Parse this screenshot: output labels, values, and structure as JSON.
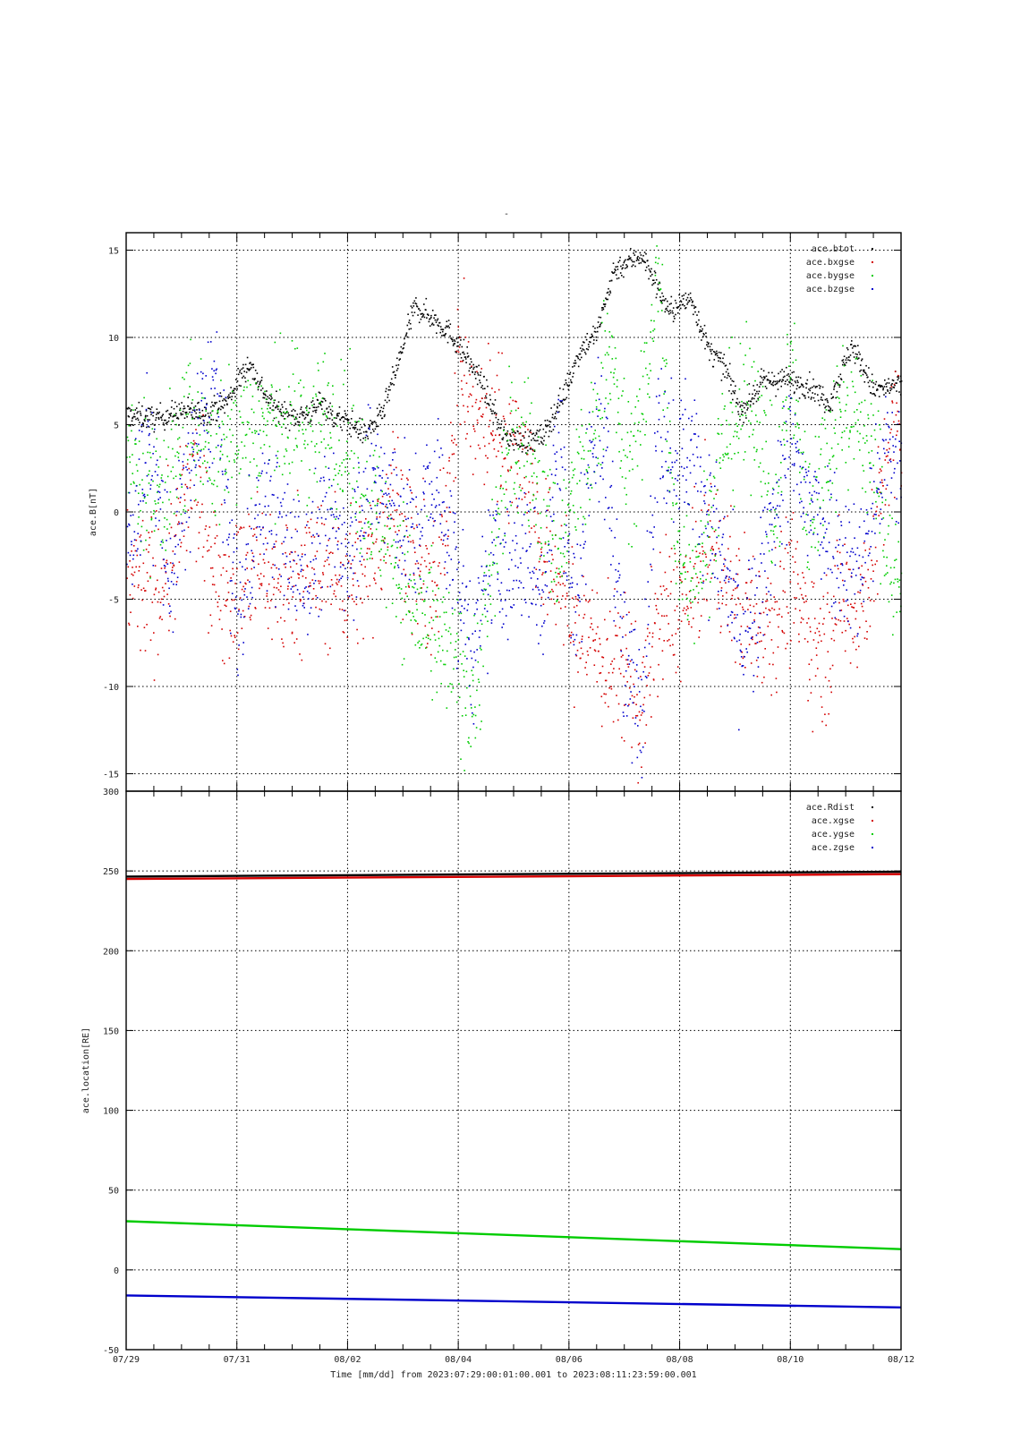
{
  "title_mark": "-",
  "footer": "Time [mm/dd]  from 2023:07:29:00:01:00.001  to  2023:08:11:23:59:00.001",
  "x_ticks": [
    "07/29",
    "07/31",
    "08/02",
    "08/04",
    "08/06",
    "08/08",
    "08/10",
    "08/12"
  ],
  "colors": {
    "black": "#000000",
    "red": "#d40000",
    "green": "#00cc00",
    "blue": "#0000cc"
  },
  "chart_data": [
    {
      "type": "scatter",
      "ylabel": "ace.B[nT]",
      "xlabel": "Time [mm/dd]",
      "x_unit": "days since 2023-07-29",
      "xlim": [
        0,
        14
      ],
      "ylim": [
        -16,
        16
      ],
      "yticks": [
        15,
        10,
        5,
        0,
        -5,
        -10,
        -15
      ],
      "grid": true,
      "legend_position": "top-right",
      "series": [
        {
          "name": "ace.btot",
          "color": "#000000",
          "x": [
            0,
            0.5,
            1,
            1.4,
            1.8,
            2.2,
            2.6,
            3,
            3.4,
            3.5,
            3.7,
            3.9,
            4.1,
            4.3,
            4.6,
            4.9,
            5.2,
            5.5,
            5.8,
            6,
            6.4,
            6.8,
            7.2,
            7.5,
            7.9,
            8.2,
            8.5,
            8.8,
            9.3,
            9.8,
            10.2,
            10.5,
            10.8,
            11.1,
            11.5,
            11.9,
            12.3,
            12.7,
            13.1,
            13.5,
            14
          ],
          "y": [
            5.6,
            5.4,
            5.8,
            5.7,
            6.3,
            8.6,
            6.2,
            5.5,
            5.8,
            6.6,
            5.5,
            5.3,
            5.0,
            4.5,
            5.5,
            8.5,
            11.8,
            11.2,
            10.4,
            9.6,
            7.5,
            4.5,
            4.0,
            4.3,
            6.8,
            9.4,
            10.3,
            13.9,
            14.8,
            11.5,
            12.3,
            9.4,
            8.3,
            5.8,
            7.5,
            7.6,
            7.3,
            6.3,
            9.6,
            7.0,
            7.3
          ]
        },
        {
          "name": "ace.bxgse",
          "color": "#d40000",
          "x": [
            0,
            0.4,
            0.8,
            1.2,
            1.6,
            2,
            2.4,
            2.8,
            3.2,
            3.6,
            4,
            4.4,
            4.8,
            5.2,
            5.6,
            6,
            6.3,
            6.6,
            6.9,
            7.2,
            7.5,
            7.8,
            8.1,
            8.4,
            8.7,
            9,
            9.3,
            9.6,
            9.9,
            10.2,
            10.5,
            10.8,
            11.1,
            11.4,
            11.7,
            12,
            12.3,
            12.6,
            12.9,
            13.2,
            13.5,
            13.8,
            14
          ],
          "y": [
            -3.5,
            -4.5,
            -3.0,
            2.2,
            -3.5,
            -4.4,
            -2.8,
            -4.5,
            -3.0,
            -3.5,
            -3.8,
            -3.0,
            1.5,
            -3.0,
            -5.0,
            8.5,
            5.0,
            5.5,
            4.0,
            3.5,
            -2.5,
            -3.5,
            -6.5,
            -7.0,
            -9.0,
            -8.5,
            -11.5,
            -6.0,
            -5.5,
            -4.8,
            -1.5,
            -3.5,
            -5.5,
            -6.0,
            -5.5,
            -4.0,
            -6.5,
            -8.0,
            -4.5,
            -5.5,
            -2.5,
            4.5,
            4.3
          ]
        },
        {
          "name": "ace.bygse",
          "color": "#00cc00",
          "x": [
            0,
            0.4,
            0.8,
            1.2,
            1.6,
            2,
            2.4,
            2.8,
            3.2,
            3.6,
            4,
            4.4,
            4.8,
            5.2,
            5.6,
            6,
            6.3,
            6.6,
            6.9,
            7.2,
            7.5,
            7.8,
            8.1,
            8.4,
            8.7,
            9,
            9.3,
            9.6,
            9.9,
            10.2,
            10.5,
            10.8,
            11.1,
            11.4,
            11.7,
            12,
            12.3,
            12.6,
            12.9,
            13.2,
            13.5,
            13.8,
            14
          ],
          "y": [
            3.5,
            1.0,
            2.0,
            5.5,
            3.0,
            4.8,
            5.0,
            5.2,
            5.0,
            5.3,
            3.5,
            0.5,
            -2.0,
            -5.5,
            -7.5,
            -9.0,
            -10.5,
            -3.0,
            3.5,
            4.0,
            0.5,
            -2.5,
            1.5,
            3.0,
            10.0,
            2.5,
            4.5,
            14.5,
            -2.0,
            -3.0,
            -1.5,
            4.5,
            5.5,
            6.5,
            -1.0,
            8.5,
            -0.5,
            3.0,
            6.0,
            5.5,
            3.0,
            -2.5,
            -5.5
          ]
        },
        {
          "name": "ace.bzgse",
          "color": "#0000cc",
          "x": [
            0,
            0.4,
            0.8,
            1.2,
            1.6,
            2,
            2.4,
            2.8,
            3.2,
            3.6,
            4,
            4.4,
            4.8,
            5.2,
            5.6,
            6,
            6.3,
            6.6,
            6.9,
            7.2,
            7.5,
            7.8,
            8.1,
            8.4,
            8.7,
            9,
            9.3,
            9.6,
            9.9,
            10.2,
            10.5,
            10.8,
            11.1,
            11.4,
            11.7,
            12,
            12.3,
            12.6,
            12.9,
            13.2,
            13.5,
            13.8,
            14
          ],
          "y": [
            -2.0,
            4.0,
            -4.0,
            3.5,
            7.5,
            -6.5,
            1.0,
            -1.5,
            -3.5,
            -0.5,
            -2.0,
            2.5,
            0.5,
            -1.5,
            2.0,
            -4.5,
            -8.0,
            -2.5,
            -3.5,
            -2.0,
            -5.0,
            4.5,
            -6.5,
            5.0,
            2.5,
            -9.5,
            -10.5,
            5.0,
            3.5,
            3.5,
            0.0,
            -3.5,
            -7.5,
            -6.0,
            0.5,
            3.5,
            0.5,
            -0.5,
            -2.0,
            -3.5,
            0.5,
            4.0,
            1.5
          ]
        }
      ]
    },
    {
      "type": "line",
      "ylabel": "ace.location[RE]",
      "xlabel": "Time [mm/dd]",
      "x_unit": "days since 2023-07-29",
      "xlim": [
        0,
        14
      ],
      "ylim": [
        -50,
        300
      ],
      "yticks": [
        300,
        250,
        200,
        150,
        100,
        50,
        0,
        -50
      ],
      "grid": true,
      "legend_position": "top-right",
      "series": [
        {
          "name": "ace.Rdist",
          "color": "#000000",
          "x": [
            0,
            14
          ],
          "y": [
            246.5,
            249.5
          ]
        },
        {
          "name": "ace.xgse",
          "color": "#d40000",
          "x": [
            0,
            14
          ],
          "y": [
            245,
            248
          ]
        },
        {
          "name": "ace.ygse",
          "color": "#00cc00",
          "x": [
            0,
            14
          ],
          "y": [
            30.5,
            13
          ]
        },
        {
          "name": "ace.zgse",
          "color": "#0000cc",
          "x": [
            0,
            14
          ],
          "y": [
            -16,
            -23.5
          ]
        }
      ]
    }
  ]
}
